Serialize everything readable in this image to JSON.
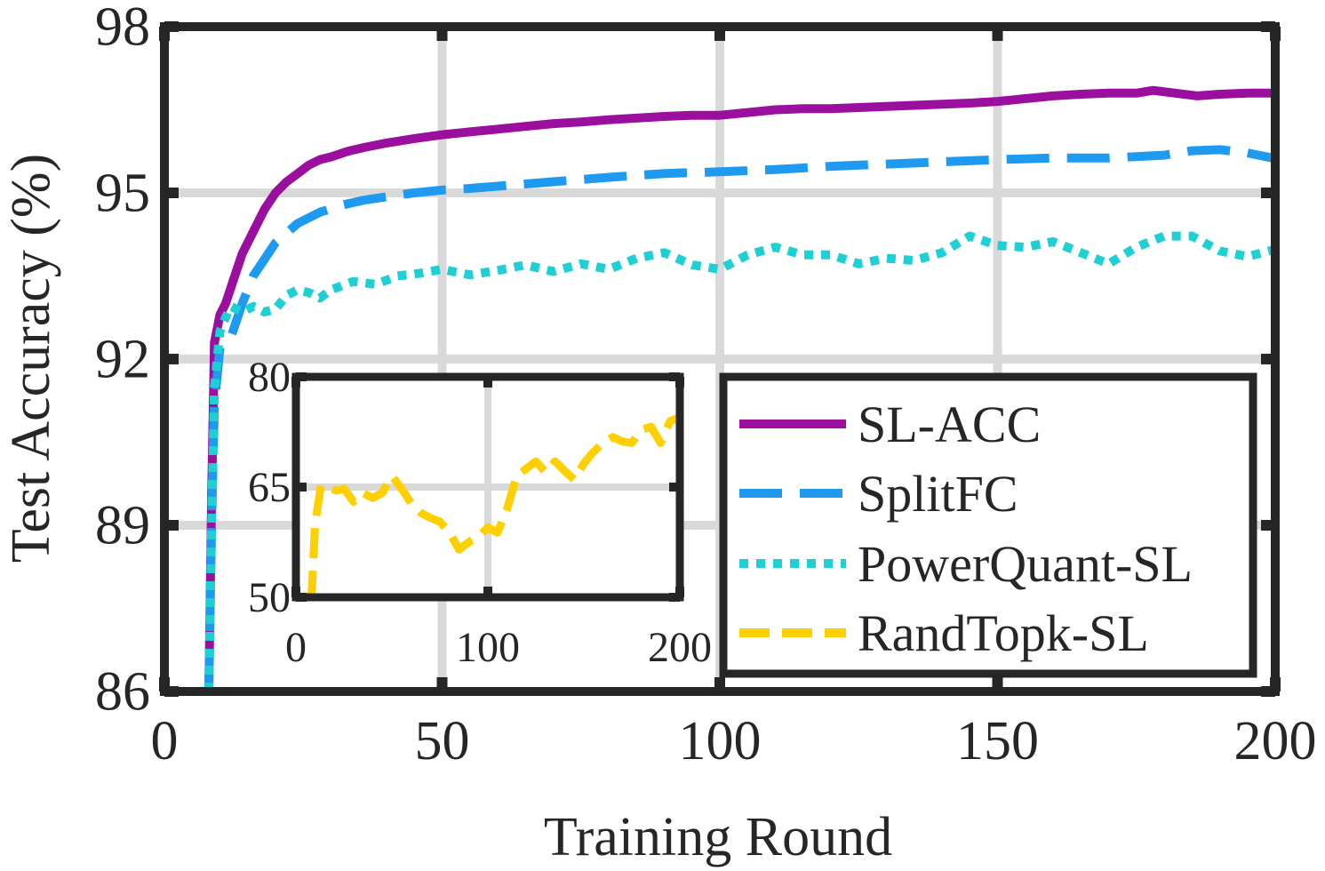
{
  "chart_data": [
    {
      "type": "line",
      "xlabel": "Training Round",
      "ylabel": "Test Accuracy (%)",
      "xlim": [
        0,
        200
      ],
      "ylim": [
        86,
        98
      ],
      "xticks": [
        0,
        50,
        100,
        150,
        200
      ],
      "yticks": [
        86,
        89,
        92,
        95,
        98
      ],
      "xtick_labels": [
        "0",
        "50",
        "100",
        "150",
        "200"
      ],
      "ytick_labels": [
        "86",
        "89",
        "92",
        "95",
        "98"
      ],
      "grid": true,
      "legend_position": "bottom-right",
      "series": [
        {
          "name": "SL-ACC",
          "color": "#9b0f9e",
          "style": "solid",
          "x": [
            8,
            8.5,
            9,
            10,
            11,
            12,
            14,
            16,
            18,
            20,
            22,
            24,
            26,
            28,
            30,
            33,
            36,
            40,
            45,
            50,
            55,
            60,
            65,
            70,
            75,
            80,
            85,
            90,
            95,
            100,
            105,
            110,
            115,
            120,
            125,
            130,
            135,
            140,
            145,
            150,
            155,
            160,
            165,
            170,
            175,
            178,
            182,
            186,
            190,
            195,
            200
          ],
          "y": [
            86.0,
            89.5,
            92.3,
            92.8,
            93.0,
            93.3,
            93.9,
            94.3,
            94.7,
            95.0,
            95.2,
            95.35,
            95.5,
            95.6,
            95.65,
            95.75,
            95.82,
            95.9,
            95.98,
            96.05,
            96.1,
            96.15,
            96.2,
            96.25,
            96.28,
            96.32,
            96.35,
            96.38,
            96.4,
            96.4,
            96.45,
            96.5,
            96.52,
            96.52,
            96.54,
            96.56,
            96.58,
            96.6,
            96.62,
            96.65,
            96.7,
            96.75,
            96.78,
            96.8,
            96.8,
            96.85,
            96.8,
            96.75,
            96.78,
            96.8,
            96.8
          ]
        },
        {
          "name": "SplitFC",
          "color": "#1e9bf0",
          "style": "dashed",
          "x": [
            8,
            8.5,
            9,
            10,
            11,
            12,
            14,
            16,
            18,
            20,
            24,
            28,
            32,
            36,
            40,
            45,
            50,
            55,
            60,
            70,
            80,
            90,
            100,
            110,
            120,
            130,
            140,
            150,
            160,
            170,
            180,
            185,
            190,
            195,
            200
          ],
          "y": [
            86.0,
            89.0,
            91.2,
            92.2,
            92.3,
            92.4,
            93.0,
            93.5,
            93.8,
            94.1,
            94.45,
            94.65,
            94.78,
            94.87,
            94.93,
            95.0,
            95.05,
            95.08,
            95.12,
            95.2,
            95.28,
            95.35,
            95.38,
            95.42,
            95.48,
            95.52,
            95.56,
            95.6,
            95.63,
            95.63,
            95.68,
            95.76,
            95.78,
            95.72,
            95.62
          ]
        },
        {
          "name": "PowerQuant-SL",
          "color": "#1ecfd3",
          "style": "dotted",
          "x": [
            8,
            8.5,
            9,
            10,
            11,
            12,
            14,
            16,
            18,
            20,
            22,
            24,
            26,
            28,
            30,
            34,
            38,
            42,
            46,
            50,
            55,
            60,
            65,
            70,
            75,
            80,
            85,
            90,
            95,
            100,
            105,
            110,
            115,
            120,
            125,
            130,
            135,
            140,
            145,
            150,
            155,
            160,
            165,
            170,
            175,
            180,
            185,
            190,
            195,
            200
          ],
          "y": [
            86.0,
            89.0,
            91.5,
            92.5,
            92.75,
            92.95,
            92.85,
            92.95,
            92.85,
            92.9,
            93.15,
            93.25,
            93.2,
            93.1,
            93.25,
            93.4,
            93.35,
            93.5,
            93.55,
            93.62,
            93.52,
            93.6,
            93.7,
            93.58,
            93.72,
            93.62,
            93.82,
            93.92,
            93.7,
            93.62,
            93.88,
            94.02,
            93.88,
            93.88,
            93.72,
            93.82,
            93.78,
            93.92,
            94.22,
            94.05,
            94.02,
            94.12,
            93.92,
            93.72,
            94.02,
            94.22,
            94.22,
            93.95,
            93.85,
            93.98
          ]
        }
      ]
    },
    {
      "type": "line",
      "role": "inset",
      "xlim": [
        0,
        200
      ],
      "ylim": [
        50,
        80
      ],
      "xticks": [
        0,
        100,
        200
      ],
      "yticks": [
        50,
        65,
        80
      ],
      "xtick_labels": [
        "0",
        "100",
        "200"
      ],
      "ytick_labels": [
        "50",
        "65",
        "80"
      ],
      "grid": true,
      "series": [
        {
          "name": "RandTopk-SL",
          "color": "#ffd000",
          "style": "dashed",
          "x": [
            8,
            10,
            13,
            17,
            21,
            25,
            30,
            35,
            40,
            45,
            50,
            55,
            60,
            65,
            70,
            75,
            80,
            85,
            90,
            95,
            100,
            105,
            110,
            115,
            120,
            125,
            130,
            135,
            140,
            145,
            150,
            155,
            160,
            165,
            170,
            175,
            180,
            185,
            190,
            195,
            200
          ],
          "y": [
            49.5,
            60.0,
            65.2,
            65.0,
            64.5,
            64.8,
            63.0,
            64.2,
            63.5,
            64.2,
            66.5,
            64.8,
            62.8,
            61.5,
            60.8,
            60.3,
            58.8,
            56.5,
            57.5,
            58.2,
            59.5,
            58.8,
            62.0,
            66.5,
            67.5,
            68.5,
            67.0,
            68.5,
            67.2,
            66.0,
            68.2,
            69.8,
            71.0,
            71.8,
            71.2,
            71.0,
            72.8,
            73.2,
            71.0,
            74.0,
            74.5
          ]
        }
      ]
    }
  ],
  "legend": {
    "entries": [
      {
        "label": "SL-ACC",
        "color": "#9b0f9e",
        "style": "solid"
      },
      {
        "label": "SplitFC",
        "color": "#1e9bf0",
        "style": "dashed"
      },
      {
        "label": "PowerQuant-SL",
        "color": "#1ecfd3",
        "style": "dotted"
      },
      {
        "label": "RandTopk-SL",
        "color": "#ffd000",
        "style": "dashed"
      }
    ]
  },
  "colors": {
    "axis": "#262626",
    "grid": "#d9d9d9"
  }
}
